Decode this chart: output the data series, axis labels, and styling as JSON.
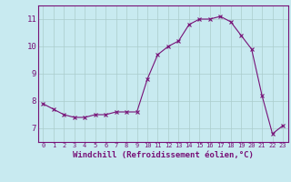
{
  "x": [
    0,
    1,
    2,
    3,
    4,
    5,
    6,
    7,
    8,
    9,
    10,
    11,
    12,
    13,
    14,
    15,
    16,
    17,
    18,
    19,
    20,
    21,
    22,
    23
  ],
  "y": [
    7.9,
    7.7,
    7.5,
    7.4,
    7.4,
    7.5,
    7.5,
    7.6,
    7.6,
    7.6,
    8.8,
    9.7,
    10.0,
    10.2,
    10.8,
    11.0,
    11.0,
    11.1,
    10.9,
    10.4,
    9.9,
    8.2,
    6.8,
    7.1
  ],
  "line_color": "#771177",
  "marker_color": "#771177",
  "bg_color": "#c8eaf0",
  "grid_color": "#aacccc",
  "xlabel": "Windchill (Refroidissement éolien,°C)",
  "xlim": [
    -0.5,
    23.5
  ],
  "ylim": [
    6.5,
    11.5
  ],
  "yticks": [
    7,
    8,
    9,
    10,
    11
  ],
  "xticks": [
    0,
    1,
    2,
    3,
    4,
    5,
    6,
    7,
    8,
    9,
    10,
    11,
    12,
    13,
    14,
    15,
    16,
    17,
    18,
    19,
    20,
    21,
    22,
    23
  ],
  "tick_label_color": "#771177",
  "axis_color": "#771177",
  "font_family": "monospace",
  "xlabel_fontsize": 6.5,
  "xtick_fontsize": 5.0,
  "ytick_fontsize": 6.5
}
